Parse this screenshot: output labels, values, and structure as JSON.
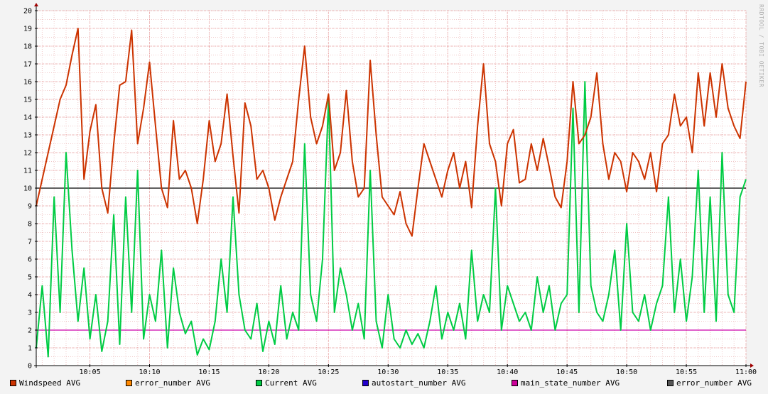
{
  "watermark": "RRDTOOL / TOBI OETIKER",
  "chart_data": {
    "type": "line",
    "title": "",
    "xlabel": "",
    "ylabel": "",
    "xlim": [
      "10:00:30",
      "11:00"
    ],
    "ylim": [
      0,
      20
    ],
    "grid": true,
    "legend_position": "bottom",
    "y_ticks": [
      "0",
      "1",
      "2",
      "3",
      "4",
      "5",
      "6",
      "7",
      "8",
      "9",
      "10",
      "11",
      "12",
      "13",
      "14",
      "15",
      "16",
      "17",
      "18",
      "19",
      "20"
    ],
    "x_ticks": [
      "10:05",
      "10:10",
      "10:15",
      "10:20",
      "10:25",
      "10:30",
      "10:35",
      "10:40",
      "10:45",
      "10:50",
      "10:55",
      "11:00"
    ],
    "hrules": [
      {
        "value": 10,
        "color": "#000000"
      },
      {
        "value": 2,
        "color": "#cc00aa"
      }
    ],
    "series": [
      {
        "name": "Windspeed AVG",
        "color": "#cc3300",
        "x_minutes": [
          0.5,
          1,
          1.5,
          2,
          2.5,
          3,
          3.5,
          4,
          4.5,
          5,
          5.5,
          6,
          6.5,
          7,
          7.5,
          8,
          8.5,
          9,
          9.5,
          10,
          10.5,
          11,
          11.5,
          12,
          12.5,
          13,
          13.5,
          14,
          14.5,
          15,
          15.5,
          16,
          16.5,
          17,
          17.5,
          18,
          18.5,
          19,
          19.5,
          20,
          20.5,
          21,
          21.5,
          22,
          22.5,
          23,
          23.5,
          24,
          24.5,
          25,
          25.5,
          26,
          26.5,
          27,
          27.5,
          28,
          28.5,
          29,
          29.5,
          30,
          30.5,
          31,
          31.5,
          32,
          32.5,
          33,
          33.5,
          34,
          34.5,
          35,
          35.5,
          36,
          36.5,
          37,
          37.5,
          38,
          38.5,
          39,
          39.5,
          40,
          40.5,
          41,
          41.5,
          42,
          42.5,
          43,
          43.5,
          44,
          44.5,
          45,
          45.5,
          46,
          46.5,
          47,
          47.5,
          48,
          48.5,
          49,
          49.5,
          50,
          50.5,
          51,
          51.5,
          52,
          52.5,
          53,
          53.5,
          54,
          54.5,
          55,
          55.5,
          56,
          56.5,
          57,
          57.5,
          58,
          58.5,
          59,
          59.5,
          60
        ],
        "values": [
          9.0,
          10.5,
          12.0,
          13.5,
          15.0,
          15.8,
          17.5,
          19.0,
          10.5,
          13.2,
          14.7,
          10.0,
          8.6,
          12.5,
          15.8,
          16.0,
          18.9,
          12.5,
          14.5,
          17.1,
          13.5,
          10.0,
          8.9,
          13.8,
          10.5,
          11.0,
          10.0,
          8.0,
          10.5,
          13.8,
          11.5,
          12.5,
          15.3,
          11.8,
          8.6,
          14.8,
          13.5,
          10.5,
          11.0,
          10.0,
          8.2,
          9.5,
          10.5,
          11.5,
          15.0,
          18.0,
          14.0,
          12.5,
          13.5,
          15.3,
          11.0,
          12.0,
          15.5,
          11.5,
          9.5,
          10.0,
          17.2,
          13.0,
          9.5,
          9.0,
          8.5,
          9.8,
          8.0,
          7.3,
          10.0,
          12.5,
          11.5,
          10.5,
          9.5,
          11.0,
          12.0,
          10.0,
          11.5,
          8.9,
          13.5,
          17.0,
          12.5,
          11.5,
          9.0,
          12.5,
          13.3,
          10.3,
          10.5,
          12.5,
          11.0,
          12.8,
          11.2,
          9.5,
          8.9,
          11.5,
          16.0,
          12.5,
          13.0,
          14.0,
          16.5,
          12.5,
          10.5,
          12.0,
          11.5,
          9.8,
          12.0,
          11.5,
          10.5,
          12.0,
          9.8,
          12.5,
          13.0,
          15.3,
          13.5,
          14.0,
          12.0,
          16.5,
          13.5,
          16.5,
          14.0,
          17.0,
          14.5,
          13.5,
          12.8,
          16.0
        ]
      },
      {
        "name": "error_number AVG",
        "color": "#ff8800",
        "x_minutes": [],
        "values": []
      },
      {
        "name": "Current AVG",
        "color": "#00cc44",
        "x_minutes": [
          0.5,
          1,
          1.5,
          2,
          2.5,
          3,
          3.5,
          4,
          4.5,
          5,
          5.5,
          6,
          6.5,
          7,
          7.5,
          8,
          8.5,
          9,
          9.5,
          10,
          10.5,
          11,
          11.5,
          12,
          12.5,
          13,
          13.5,
          14,
          14.5,
          15,
          15.5,
          16,
          16.5,
          17,
          17.5,
          18,
          18.5,
          19,
          19.5,
          20,
          20.5,
          21,
          21.5,
          22,
          22.5,
          23,
          23.5,
          24,
          24.5,
          25,
          25.5,
          26,
          26.5,
          27,
          27.5,
          28,
          28.5,
          29,
          29.5,
          30,
          30.5,
          31,
          31.5,
          32,
          32.5,
          33,
          33.5,
          34,
          34.5,
          35,
          35.5,
          36,
          36.5,
          37,
          37.5,
          38,
          38.5,
          39,
          39.5,
          40,
          40.5,
          41,
          41.5,
          42,
          42.5,
          43,
          43.5,
          44,
          44.5,
          45,
          45.5,
          46,
          46.5,
          47,
          47.5,
          48,
          48.5,
          49,
          49.5,
          50,
          50.5,
          51,
          51.5,
          52,
          52.5,
          53,
          53.5,
          54,
          54.5,
          55,
          55.5,
          56,
          56.5,
          57,
          57.5,
          58,
          58.5,
          59,
          59.5,
          60
        ],
        "values": [
          1.0,
          4.5,
          0.5,
          9.5,
          3.0,
          12.0,
          6.5,
          2.5,
          5.5,
          1.5,
          4.0,
          0.8,
          2.5,
          8.5,
          1.2,
          9.5,
          3.0,
          11.0,
          1.5,
          4.0,
          2.5,
          6.5,
          1.0,
          5.5,
          3.0,
          1.8,
          2.5,
          0.6,
          1.5,
          0.9,
          2.5,
          6.0,
          3.0,
          9.5,
          4.0,
          2.0,
          1.5,
          3.5,
          0.8,
          2.5,
          1.2,
          4.5,
          1.5,
          3.0,
          2.0,
          12.5,
          4.0,
          2.5,
          6.0,
          15.0,
          3.0,
          5.5,
          4.0,
          2.0,
          3.5,
          1.5,
          11.0,
          2.5,
          1.0,
          4.0,
          1.5,
          1.0,
          2.0,
          1.2,
          1.8,
          1.0,
          2.5,
          4.5,
          1.5,
          3.0,
          2.0,
          3.5,
          1.5,
          6.5,
          2.5,
          4.0,
          3.0,
          10.0,
          2.0,
          4.5,
          3.5,
          2.5,
          3.0,
          2.0,
          5.0,
          3.0,
          4.5,
          2.0,
          3.5,
          4.0,
          14.5,
          3.0,
          16.0,
          4.5,
          3.0,
          2.5,
          4.0,
          6.5,
          2.0,
          8.0,
          3.0,
          2.5,
          4.0,
          2.0,
          3.5,
          4.5,
          9.5,
          3.0,
          6.0,
          2.5,
          5.0,
          11.0,
          3.0,
          9.5,
          2.5,
          12.0,
          4.0,
          3.0,
          9.5,
          10.5
        ]
      },
      {
        "name": "autostart_number AVG",
        "color": "#2200cc",
        "x_minutes": [],
        "values": []
      },
      {
        "name": "main_state_number AVG",
        "color": "#cc0099",
        "x_minutes": [],
        "values": []
      },
      {
        "name": "error_number AVG",
        "color": "#555555",
        "x_minutes": [],
        "values": []
      }
    ]
  }
}
